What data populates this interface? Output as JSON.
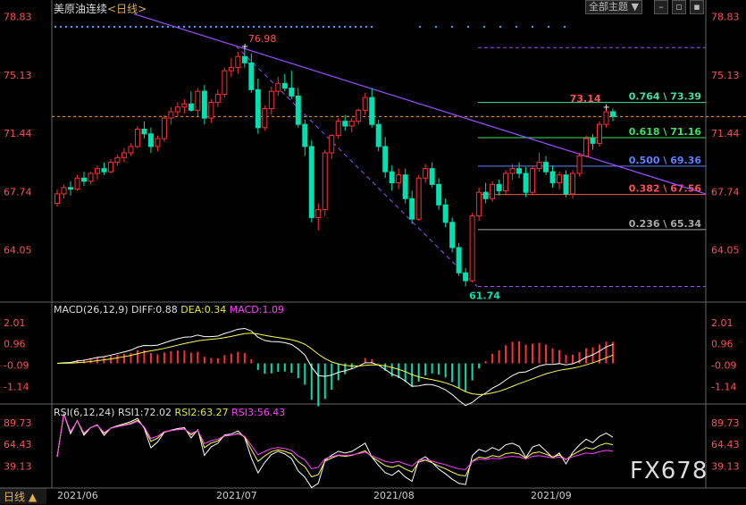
{
  "header": {
    "title": "美原油连续",
    "period": "<日线>",
    "theme_button": "全部主题",
    "theme_arrow": "▼"
  },
  "colors": {
    "up": "#ff3030",
    "down": "#00e0b0",
    "price": "#ff5050",
    "date": "#cccccc",
    "macd_dif": "#ffffff",
    "macd_dea": "#ffff40",
    "rsi1": "#ffffff",
    "rsi2": "#ffff40",
    "rsi3": "#ff40ff",
    "trend": "#9b4dff",
    "accent": "#e0b050"
  },
  "chart_data": [
    {
      "type": "candlestick",
      "title": "美原油连续 <日线>",
      "ylim": [
        61.2,
        79.2
      ],
      "yticks": [
        "78.83",
        "75.13",
        "71.44",
        "67.74",
        "64.05"
      ],
      "xticks": [
        "2021/06",
        "2021/07",
        "2021/08",
        "2021/09"
      ],
      "annotations": {
        "high": "76.98",
        "low": "61.74",
        "last_high": "73.14"
      },
      "fib": [
        {
          "level": "0.764",
          "price": "73.39",
          "label": "0.764 \\ 73.39",
          "color": "#40e0a0"
        },
        {
          "level": "0.618",
          "price": "71.16",
          "label": "0.618 \\ 71.16",
          "color": "#40e060"
        },
        {
          "level": "0.500",
          "price": "69.36",
          "label": "0.500 \\ 69.36",
          "color": "#6080ff"
        },
        {
          "level": "0.382",
          "price": "67.56",
          "label": "0.382 \\ 67.56",
          "color": "#ff5050"
        },
        {
          "level": "0.236",
          "price": "65.34",
          "label": "0.236 \\ 65.34",
          "color": "#aaaaaa"
        }
      ],
      "candles": [
        [
          67.0,
          67.9,
          66.8,
          67.6
        ],
        [
          67.6,
          68.2,
          67.3,
          68.0
        ],
        [
          68.0,
          68.4,
          67.5,
          67.9
        ],
        [
          67.9,
          68.8,
          67.8,
          68.6
        ],
        [
          68.6,
          69.0,
          68.1,
          68.4
        ],
        [
          68.4,
          69.0,
          68.2,
          68.9
        ],
        [
          68.9,
          69.4,
          68.5,
          69.2
        ],
        [
          69.2,
          69.6,
          68.8,
          69.0
        ],
        [
          69.0,
          69.8,
          68.9,
          69.6
        ],
        [
          69.6,
          70.1,
          69.4,
          69.9
        ],
        [
          69.9,
          70.5,
          69.6,
          70.2
        ],
        [
          70.2,
          70.8,
          70.0,
          70.6
        ],
        [
          70.6,
          71.9,
          70.5,
          71.7
        ],
        [
          71.7,
          72.2,
          71.1,
          71.4
        ],
        [
          71.4,
          71.8,
          70.2,
          70.6
        ],
        [
          70.6,
          71.3,
          70.3,
          71.1
        ],
        [
          71.1,
          72.6,
          70.9,
          72.4
        ],
        [
          72.4,
          73.1,
          72.0,
          72.8
        ],
        [
          72.8,
          73.4,
          72.5,
          73.1
        ],
        [
          73.1,
          73.6,
          72.7,
          73.3
        ],
        [
          73.3,
          74.1,
          72.8,
          72.9
        ],
        [
          72.9,
          74.3,
          72.5,
          74.1
        ],
        [
          74.1,
          74.5,
          72.0,
          72.4
        ],
        [
          72.4,
          73.6,
          72.1,
          73.4
        ],
        [
          73.4,
          74.2,
          73.1,
          73.9
        ],
        [
          73.9,
          75.6,
          73.7,
          75.4
        ],
        [
          75.4,
          76.2,
          75.0,
          75.6
        ],
        [
          75.6,
          76.6,
          75.2,
          76.3
        ],
        [
          76.3,
          76.98,
          75.6,
          75.9
        ],
        [
          75.9,
          76.5,
          74.0,
          74.2
        ],
        [
          74.2,
          74.9,
          71.4,
          71.8
        ],
        [
          71.8,
          73.2,
          71.6,
          73.0
        ],
        [
          73.0,
          74.4,
          72.6,
          74.1
        ],
        [
          74.1,
          75.0,
          73.8,
          74.6
        ],
        [
          74.6,
          75.2,
          74.1,
          74.3
        ],
        [
          74.3,
          75.4,
          73.6,
          73.8
        ],
        [
          73.8,
          74.3,
          71.8,
          72.0
        ],
        [
          72.0,
          72.3,
          70.0,
          70.6
        ],
        [
          70.6,
          71.0,
          65.8,
          66.1
        ],
        [
          66.1,
          67.0,
          65.3,
          66.6
        ],
        [
          66.6,
          70.4,
          66.2,
          70.2
        ],
        [
          70.2,
          71.4,
          69.8,
          71.3
        ],
        [
          71.3,
          72.4,
          71.1,
          72.2
        ],
        [
          72.2,
          72.6,
          71.6,
          71.9
        ],
        [
          71.9,
          72.4,
          71.5,
          72.2
        ],
        [
          72.2,
          73.0,
          72.0,
          72.9
        ],
        [
          72.9,
          74.0,
          72.6,
          73.7
        ],
        [
          73.7,
          74.3,
          71.8,
          72.0
        ],
        [
          72.0,
          72.3,
          70.3,
          70.6
        ],
        [
          70.6,
          71.2,
          68.6,
          69.0
        ],
        [
          69.0,
          69.4,
          67.8,
          68.3
        ],
        [
          68.3,
          69.2,
          67.9,
          68.8
        ],
        [
          68.8,
          69.2,
          67.0,
          67.3
        ],
        [
          67.3,
          67.8,
          65.7,
          66.0
        ],
        [
          66.0,
          68.8,
          65.9,
          68.6
        ],
        [
          68.6,
          69.5,
          68.3,
          69.2
        ],
        [
          69.2,
          69.6,
          68.0,
          68.2
        ],
        [
          68.2,
          68.6,
          66.6,
          66.9
        ],
        [
          66.9,
          67.3,
          65.5,
          65.8
        ],
        [
          65.8,
          66.1,
          63.9,
          64.2
        ],
        [
          64.2,
          64.5,
          62.4,
          62.6
        ],
        [
          62.6,
          62.9,
          61.74,
          62.1
        ],
        [
          62.1,
          66.4,
          62.0,
          66.2
        ],
        [
          66.2,
          68.0,
          65.9,
          67.7
        ],
        [
          67.7,
          68.3,
          67.0,
          67.3
        ],
        [
          67.3,
          68.4,
          67.1,
          68.2
        ],
        [
          68.2,
          68.5,
          67.5,
          67.8
        ],
        [
          67.8,
          69.1,
          67.6,
          68.9
        ],
        [
          68.9,
          69.5,
          68.5,
          69.2
        ],
        [
          69.2,
          69.6,
          68.6,
          68.9
        ],
        [
          68.9,
          69.3,
          67.4,
          67.7
        ],
        [
          67.7,
          69.4,
          67.5,
          69.2
        ],
        [
          69.2,
          70.2,
          69.0,
          69.6
        ],
        [
          69.6,
          70.0,
          68.8,
          69.0
        ],
        [
          69.0,
          69.4,
          68.0,
          68.3
        ],
        [
          68.3,
          69.0,
          67.9,
          68.8
        ],
        [
          68.8,
          69.1,
          67.4,
          67.6
        ],
        [
          67.6,
          69.1,
          67.3,
          68.9
        ],
        [
          68.9,
          70.2,
          68.7,
          70.0
        ],
        [
          70.0,
          71.3,
          69.9,
          71.1
        ],
        [
          71.1,
          71.4,
          70.4,
          70.8
        ],
        [
          70.8,
          72.2,
          70.6,
          72.0
        ],
        [
          72.0,
          73.14,
          71.8,
          72.8
        ],
        [
          72.8,
          73.0,
          72.2,
          72.5
        ]
      ]
    },
    {
      "type": "line",
      "title": "MACD(26,12,9)",
      "series": [
        {
          "name": "DIFF",
          "value": "0.88"
        },
        {
          "name": "DEA",
          "value": "0.34"
        },
        {
          "name": "MACD",
          "value": "1.09"
        }
      ],
      "ylim": [
        -2.0,
        2.4
      ],
      "yticks": [
        "2.01",
        "0.96",
        "-0.09",
        "-1.14"
      ]
    },
    {
      "type": "line",
      "title": "RSI(6,12,24)",
      "series": [
        {
          "name": "RSI1",
          "value": "72.02"
        },
        {
          "name": "RSI2",
          "value": "63.27"
        },
        {
          "name": "RSI3",
          "value": "56.43"
        }
      ],
      "ylim": [
        20,
        100
      ],
      "yticks": [
        "89.73",
        "64.43",
        "39.13"
      ]
    }
  ],
  "footer": {
    "tab": "日线",
    "tab_arrow": "▲",
    "logo": "FX678"
  }
}
